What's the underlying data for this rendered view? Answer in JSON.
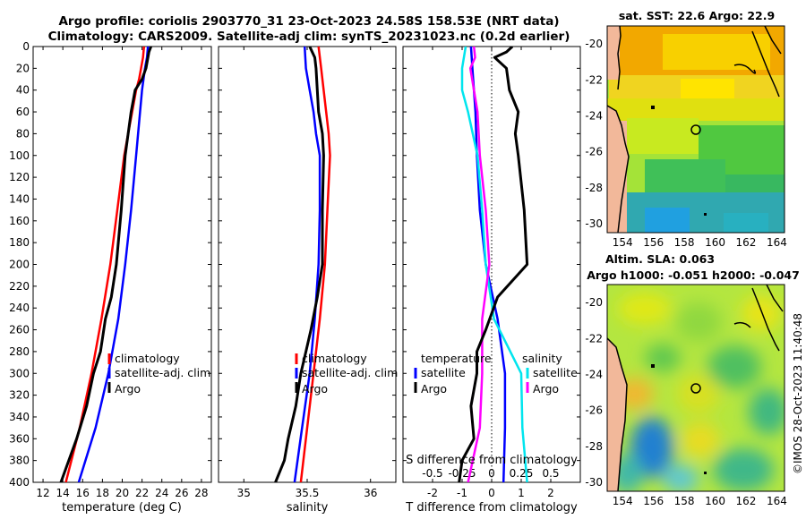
{
  "title_line1": "Argo profile: coriolis 2903770_31 23-Oct-2023 24.58S 158.53E (NRT data)",
  "title_line2": "Climatology: CARS2009. Satellite-adj clim: synTS_20231023.nc (0.2d earlier)",
  "credit": "©IMOS 28-Oct-2023 11:40:48",
  "colors": {
    "climatology": "#ff0000",
    "satellite": "#0000ff",
    "argo": "#000000",
    "t_sat": "#00e5ee",
    "s_sat": "#ff00ff"
  },
  "chart_data": [
    {
      "type": "line",
      "id": "temperature",
      "xlabel": "temperature (deg C)",
      "ylabel": "",
      "xlim": [
        11,
        29
      ],
      "ylim": [
        400,
        0
      ],
      "xticks": [
        12,
        14,
        16,
        18,
        20,
        22,
        24,
        26,
        28
      ],
      "yticks": [
        0,
        20,
        40,
        60,
        80,
        100,
        120,
        140,
        160,
        180,
        200,
        220,
        240,
        260,
        280,
        300,
        320,
        340,
        360,
        380,
        400
      ],
      "legend": [
        "climatology",
        "satellite-adj. clim",
        "Argo"
      ],
      "series": [
        {
          "name": "climatology",
          "depth": [
            0,
            10,
            20,
            30,
            40,
            60,
            80,
            100,
            150,
            200,
            250,
            300,
            350,
            400
          ],
          "values": [
            22.2,
            22.1,
            21.9,
            21.7,
            21.4,
            21.0,
            20.6,
            20.2,
            19.5,
            18.8,
            17.9,
            16.9,
            15.7,
            14.3
          ]
        },
        {
          "name": "satellite-adj. clim",
          "depth": [
            0,
            10,
            20,
            40,
            60,
            80,
            100,
            150,
            200,
            250,
            300,
            350,
            400
          ],
          "values": [
            22.6,
            22.5,
            22.3,
            22.0,
            21.8,
            21.6,
            21.4,
            20.9,
            20.3,
            19.6,
            18.6,
            17.3,
            15.6
          ]
        },
        {
          "name": "Argo",
          "depth": [
            0,
            5,
            10,
            20,
            30,
            40,
            60,
            80,
            100,
            150,
            200,
            230,
            250,
            280,
            300,
            330,
            360,
            380,
            400
          ],
          "values": [
            22.9,
            22.7,
            22.6,
            22.4,
            22.0,
            21.3,
            20.9,
            20.6,
            20.3,
            19.9,
            19.4,
            18.9,
            18.3,
            17.8,
            17.1,
            16.4,
            15.4,
            14.6,
            13.8
          ]
        }
      ]
    },
    {
      "type": "line",
      "id": "salinity",
      "xlabel": "salinity",
      "ylabel": "",
      "xlim": [
        34.8,
        36.2
      ],
      "ylim": [
        400,
        0
      ],
      "xticks": [
        35,
        35.5,
        36
      ],
      "legend": [
        "climatology",
        "satellite-adj. clim",
        "Argo"
      ],
      "series": [
        {
          "name": "climatology",
          "depth": [
            0,
            20,
            40,
            60,
            80,
            100,
            150,
            200,
            250,
            300,
            350,
            400
          ],
          "values": [
            35.59,
            35.61,
            35.63,
            35.65,
            35.67,
            35.68,
            35.66,
            35.64,
            35.6,
            35.55,
            35.5,
            35.45
          ]
        },
        {
          "name": "satellite-adj. clim",
          "depth": [
            0,
            20,
            40,
            60,
            80,
            100,
            150,
            200,
            250,
            300,
            350,
            400
          ],
          "values": [
            35.48,
            35.49,
            35.52,
            35.55,
            35.57,
            35.6,
            35.6,
            35.59,
            35.56,
            35.52,
            35.46,
            35.4
          ]
        },
        {
          "name": "Argo",
          "depth": [
            0,
            10,
            20,
            40,
            60,
            80,
            100,
            150,
            200,
            230,
            260,
            280,
            300,
            330,
            360,
            380,
            400
          ],
          "values": [
            35.52,
            35.56,
            35.57,
            35.58,
            35.59,
            35.62,
            35.63,
            35.62,
            35.62,
            35.58,
            35.53,
            35.49,
            35.45,
            35.41,
            35.35,
            35.32,
            35.25
          ]
        }
      ]
    },
    {
      "type": "line",
      "id": "difference",
      "xlabel": "T difference from climatology",
      "xlabel_top": "S difference from climatology",
      "xlim": [
        -3,
        3
      ],
      "xticks": [
        -2,
        -1,
        0,
        1,
        2
      ],
      "s_xticks": [
        -0.5,
        -0.25,
        0,
        0.25,
        0.5
      ],
      "s_xticklabels": [
        "-0.5",
        "-0.25",
        "0",
        "0.25",
        "0.5"
      ],
      "ylim": [
        400,
        0
      ],
      "legend_left_title": "temperature",
      "legend_right_title": "salinity",
      "legend_left": [
        "satellite",
        "Argo"
      ],
      "legend_right": [
        "satellite",
        "Argo"
      ],
      "series": [
        {
          "name": "T satellite",
          "depth": [
            0,
            20,
            40,
            60,
            100,
            150,
            200,
            250,
            300,
            350,
            400
          ],
          "values": [
            -0.7,
            -0.65,
            -0.6,
            -0.55,
            -0.5,
            -0.4,
            -0.2,
            0.2,
            0.45,
            0.45,
            0.4
          ]
        },
        {
          "name": "T Argo",
          "depth": [
            0,
            5,
            10,
            20,
            40,
            60,
            80,
            100,
            150,
            200,
            230,
            260,
            280,
            300,
            330,
            360,
            380,
            400
          ],
          "values": [
            0.7,
            0.5,
            0.1,
            0.5,
            0.6,
            0.9,
            0.8,
            0.9,
            1.1,
            1.2,
            0.2,
            -0.2,
            -0.5,
            -0.5,
            -0.7,
            -0.6,
            -1.0,
            -1.1
          ]
        },
        {
          "name": "S satellite",
          "depth": [
            0,
            20,
            40,
            60,
            100,
            150,
            200,
            250,
            300,
            350,
            400
          ],
          "values": [
            -0.22,
            -0.25,
            -0.25,
            -0.2,
            -0.12,
            -0.08,
            -0.05,
            0.02,
            0.25,
            0.26,
            0.3
          ]
        },
        {
          "name": "S Argo",
          "depth": [
            0,
            10,
            20,
            40,
            60,
            100,
            150,
            200,
            250,
            300,
            350,
            400
          ],
          "values": [
            -0.15,
            -0.14,
            -0.18,
            -0.15,
            -0.12,
            -0.1,
            -0.05,
            -0.02,
            -0.08,
            -0.08,
            -0.1,
            -0.2
          ]
        }
      ]
    },
    {
      "type": "heatmap",
      "id": "sst_map",
      "title": "sat. SST: 22.6 Argo: 22.9",
      "xticks": [
        154,
        156,
        158,
        160,
        162,
        164
      ],
      "yticks": [
        -20,
        -22,
        -24,
        -26,
        -28,
        -30
      ],
      "xlim": [
        153,
        164.5
      ],
      "ylim": [
        -30.5,
        -19
      ]
    },
    {
      "type": "heatmap",
      "id": "sla_map",
      "title_line1": "Altim. SLA: 0.063",
      "title_line2": "Argo h1000: -0.051 h2000: -0.047",
      "xticks": [
        154,
        156,
        158,
        160,
        162,
        164
      ],
      "yticks": [
        -20,
        -22,
        -24,
        -26,
        -28,
        -30
      ],
      "xlim": [
        153,
        164.5
      ],
      "ylim": [
        -30.5,
        -19
      ]
    }
  ]
}
